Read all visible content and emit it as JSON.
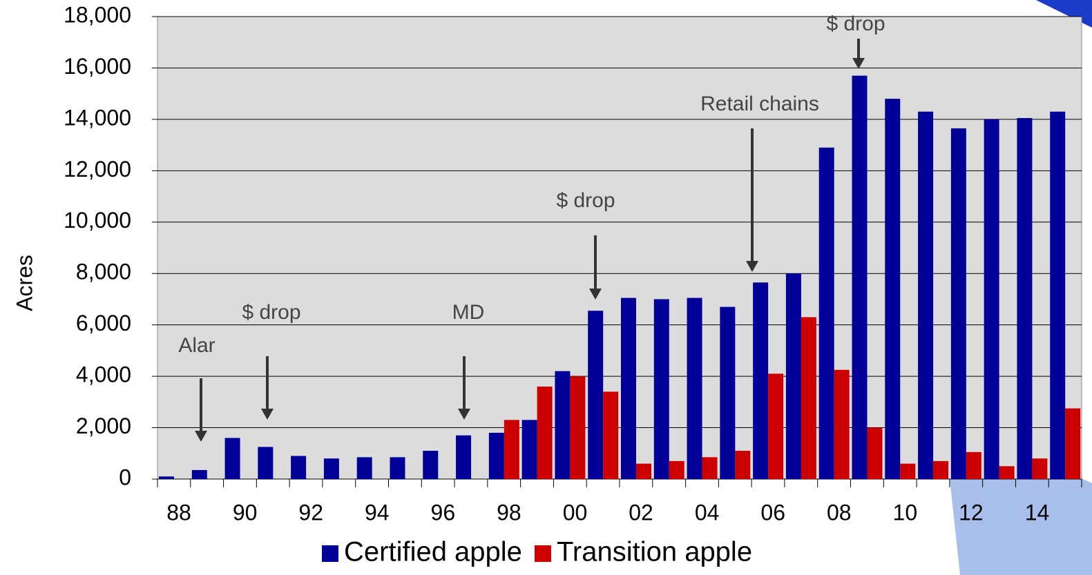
{
  "chart_data": {
    "type": "bar",
    "y_label": "Acres",
    "categories": [
      "88",
      null,
      "90",
      null,
      "92",
      null,
      "94",
      null,
      "96",
      null,
      "98",
      null,
      "00",
      null,
      "02",
      null,
      "04",
      null,
      "06",
      null,
      "08",
      null,
      "10",
      null,
      "12",
      null,
      "14",
      null
    ],
    "series": [
      {
        "name": "Certified apple",
        "color": "#000099",
        "values": [
          100,
          350,
          1600,
          1250,
          900,
          800,
          850,
          850,
          1100,
          1700,
          1800,
          2300,
          4200,
          6550,
          7050,
          7000,
          7050,
          6700,
          7650,
          8000,
          12900,
          15700,
          14800,
          14300,
          13650,
          14000,
          14050,
          14300
        ]
      },
      {
        "name": "Transition apple",
        "color": "#cc0000",
        "values": [
          null,
          null,
          null,
          null,
          null,
          null,
          null,
          null,
          null,
          null,
          2300,
          3600,
          4000,
          3400,
          600,
          700,
          850,
          1100,
          4100,
          6300,
          4250,
          2000,
          600,
          700,
          1050,
          500,
          800,
          2750
        ]
      }
    ],
    "ylim": [
      0,
      18000
    ],
    "yticks": [
      0,
      {
        "value": 2000,
        "label": "2,000"
      },
      {
        "value": 4000,
        "label": "4,000"
      },
      {
        "value": 6000,
        "label": "6,000"
      },
      {
        "value": 8000,
        "label": "8,000"
      },
      {
        "value": 10000,
        "label": "10,000"
      },
      {
        "value": 12000,
        "label": "12,000"
      },
      {
        "value": 14000,
        "label": "14,000"
      },
      {
        "value": 16000,
        "label": "16,000"
      },
      {
        "value": 18000,
        "label": "18,000"
      }
    ],
    "grid": true,
    "annotations": [
      "Alar",
      "$ drop",
      "MD",
      "$ drop",
      "Retail chains",
      "$ drop"
    ]
  }
}
